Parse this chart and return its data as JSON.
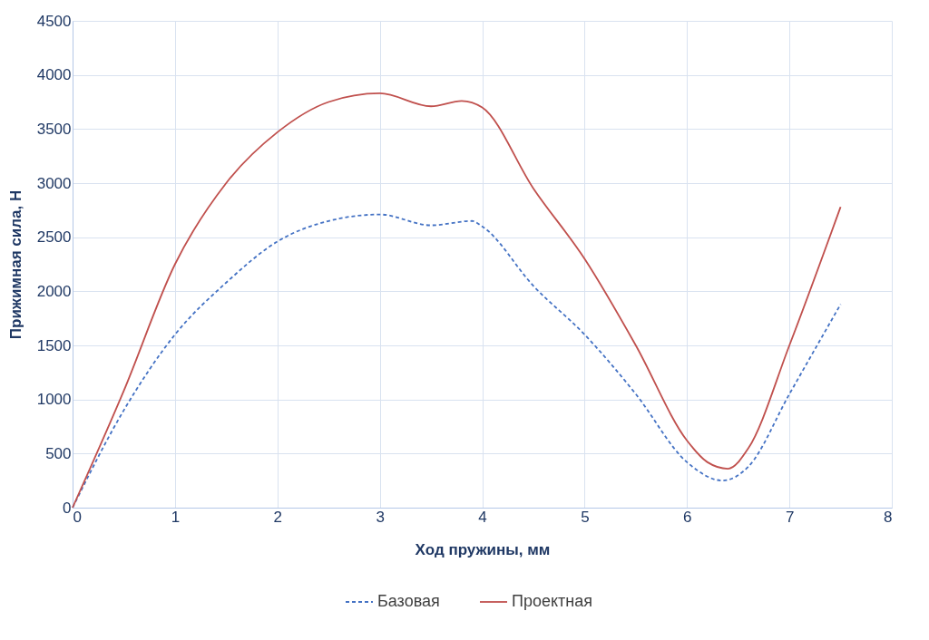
{
  "chart_data": {
    "type": "line",
    "xlabel": "Ход пружины, мм",
    "ylabel": "Прижимная сила, Н",
    "xlim": [
      0,
      8
    ],
    "xticks": [
      0,
      1,
      2,
      3,
      4,
      5,
      6,
      7,
      8
    ],
    "ylim": [
      0,
      4500
    ],
    "yticks": [
      0,
      500,
      1000,
      1500,
      2000,
      2500,
      3000,
      3500,
      4000,
      4500
    ],
    "grid": true,
    "legend": "bottom",
    "marker": "none",
    "series": [
      {
        "name": "Базовая",
        "color": "#4472c4",
        "line_style": "dashed",
        "x": [
          0,
          0.5,
          1,
          1.5,
          2,
          2.5,
          3,
          3.5,
          3.9,
          4,
          4.5,
          5,
          5.5,
          6,
          6.35,
          6.6,
          7,
          7.5
        ],
        "values": [
          0,
          900,
          1600,
          2080,
          2460,
          2650,
          2710,
          2610,
          2650,
          2600,
          2050,
          1600,
          1050,
          420,
          250,
          380,
          1050,
          1880
        ]
      },
      {
        "name": "Проектная",
        "color": "#c0504d",
        "line_style": "solid",
        "x": [
          0,
          0.5,
          1,
          1.5,
          2,
          2.5,
          3,
          3.5,
          3.8,
          4,
          4.5,
          5,
          5.5,
          6,
          6.2,
          6.4,
          6.6,
          7,
          7.5
        ],
        "values": [
          0,
          1080,
          2250,
          3000,
          3470,
          3750,
          3830,
          3710,
          3760,
          3700,
          2950,
          2300,
          1500,
          620,
          420,
          360,
          550,
          1500,
          2780
        ]
      }
    ]
  }
}
